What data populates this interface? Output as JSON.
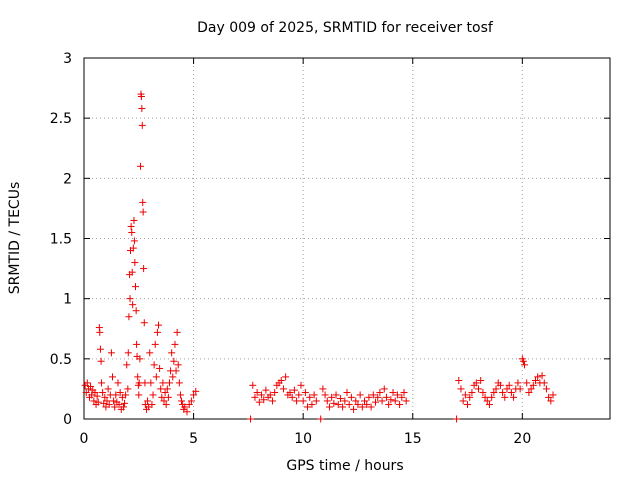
{
  "chart_data": {
    "type": "scatter",
    "title": "Day 009 of 2025, SRMTID for receiver tosf",
    "xlabel": "GPS time / hours",
    "ylabel": "SRMTID / TECUs",
    "xlim": [
      0,
      24
    ],
    "ylim": [
      0,
      3
    ],
    "xticks": [
      0,
      5,
      10,
      15,
      20
    ],
    "yticks": [
      0,
      0.5,
      1,
      1.5,
      2,
      2.5,
      3
    ],
    "xtick_labels": [
      "0",
      "5",
      "10",
      "15",
      "20"
    ],
    "ytick_labels": [
      "0",
      "0.5",
      "1",
      "1.5",
      "2",
      "2.5",
      "3"
    ],
    "grid": true,
    "marker": "+",
    "color": "#ee0000",
    "series": [
      {
        "name": "SRMTID",
        "points": [
          [
            0.05,
            0.28
          ],
          [
            0.1,
            0.22
          ],
          [
            0.15,
            0.3
          ],
          [
            0.2,
            0.25
          ],
          [
            0.25,
            0.18
          ],
          [
            0.3,
            0.27
          ],
          [
            0.35,
            0.2
          ],
          [
            0.4,
            0.24
          ],
          [
            0.45,
            0.15
          ],
          [
            0.5,
            0.22
          ],
          [
            0.55,
            0.12
          ],
          [
            0.6,
            0.19
          ],
          [
            0.65,
            0.14
          ],
          [
            0.7,
            0.76
          ],
          [
            0.72,
            0.72
          ],
          [
            0.75,
            0.58
          ],
          [
            0.78,
            0.48
          ],
          [
            0.8,
            0.3
          ],
          [
            0.85,
            0.22
          ],
          [
            0.9,
            0.13
          ],
          [
            0.95,
            0.18
          ],
          [
            1.0,
            0.1
          ],
          [
            1.05,
            0.15
          ],
          [
            1.1,
            0.25
          ],
          [
            1.15,
            0.12
          ],
          [
            1.2,
            0.2
          ],
          [
            1.25,
            0.55
          ],
          [
            1.3,
            0.35
          ],
          [
            1.35,
            0.15
          ],
          [
            1.4,
            0.1
          ],
          [
            1.45,
            0.2
          ],
          [
            1.5,
            0.14
          ],
          [
            1.55,
            0.3
          ],
          [
            1.6,
            0.12
          ],
          [
            1.65,
            0.22
          ],
          [
            1.7,
            0.08
          ],
          [
            1.75,
            0.18
          ],
          [
            1.8,
            0.1
          ],
          [
            1.85,
            0.13
          ],
          [
            1.9,
            0.2
          ],
          [
            1.95,
            0.45
          ],
          [
            2.0,
            0.25
          ],
          [
            2.02,
            0.55
          ],
          [
            2.05,
            0.85
          ],
          [
            2.08,
            1.2
          ],
          [
            2.1,
            1.0
          ],
          [
            2.12,
            1.4
          ],
          [
            2.15,
            1.6
          ],
          [
            2.18,
            1.55
          ],
          [
            2.2,
            1.22
          ],
          [
            2.22,
            0.95
          ],
          [
            2.25,
            1.42
          ],
          [
            2.28,
            1.65
          ],
          [
            2.3,
            1.48
          ],
          [
            2.32,
            1.3
          ],
          [
            2.35,
            1.1
          ],
          [
            2.38,
            0.9
          ],
          [
            2.4,
            0.62
          ],
          [
            2.42,
            0.52
          ],
          [
            2.45,
            0.35
          ],
          [
            2.48,
            0.28
          ],
          [
            2.5,
            0.2
          ],
          [
            2.52,
            0.3
          ],
          [
            2.55,
            0.5
          ],
          [
            2.58,
            2.1
          ],
          [
            2.6,
            2.7
          ],
          [
            2.62,
            2.68
          ],
          [
            2.64,
            2.58
          ],
          [
            2.66,
            2.44
          ],
          [
            2.68,
            1.8
          ],
          [
            2.7,
            1.72
          ],
          [
            2.72,
            1.25
          ],
          [
            2.75,
            0.8
          ],
          [
            2.78,
            0.3
          ],
          [
            2.8,
            0.12
          ],
          [
            2.85,
            0.08
          ],
          [
            2.9,
            0.15
          ],
          [
            2.95,
            0.1
          ],
          [
            3.0,
            0.55
          ],
          [
            3.05,
            0.3
          ],
          [
            3.1,
            0.12
          ],
          [
            3.15,
            0.2
          ],
          [
            3.2,
            0.45
          ],
          [
            3.25,
            0.62
          ],
          [
            3.3,
            0.35
          ],
          [
            3.35,
            0.72
          ],
          [
            3.4,
            0.78
          ],
          [
            3.45,
            0.42
          ],
          [
            3.5,
            0.25
          ],
          [
            3.55,
            0.18
          ],
          [
            3.6,
            0.3
          ],
          [
            3.65,
            0.15
          ],
          [
            3.7,
            0.22
          ],
          [
            3.75,
            0.12
          ],
          [
            3.8,
            0.25
          ],
          [
            3.85,
            0.18
          ],
          [
            3.9,
            0.3
          ],
          [
            3.95,
            0.4
          ],
          [
            4.0,
            0.55
          ],
          [
            4.05,
            0.35
          ],
          [
            4.1,
            0.48
          ],
          [
            4.15,
            0.62
          ],
          [
            4.2,
            0.4
          ],
          [
            4.25,
            0.72
          ],
          [
            4.3,
            0.45
          ],
          [
            4.35,
            0.3
          ],
          [
            4.4,
            0.2
          ],
          [
            4.45,
            0.15
          ],
          [
            4.5,
            0.12
          ],
          [
            4.55,
            0.08
          ],
          [
            4.6,
            0.1
          ],
          [
            4.7,
            0.06
          ],
          [
            4.8,
            0.12
          ],
          [
            4.9,
            0.15
          ],
          [
            5.0,
            0.2
          ],
          [
            5.1,
            0.23
          ],
          [
            7.6,
            0.0
          ],
          [
            7.7,
            0.28
          ],
          [
            7.8,
            0.18
          ],
          [
            7.9,
            0.22
          ],
          [
            8.0,
            0.14
          ],
          [
            8.1,
            0.2
          ],
          [
            8.2,
            0.16
          ],
          [
            8.3,
            0.24
          ],
          [
            8.4,
            0.18
          ],
          [
            8.5,
            0.2
          ],
          [
            8.6,
            0.15
          ],
          [
            8.7,
            0.22
          ],
          [
            8.8,
            0.28
          ],
          [
            8.9,
            0.3
          ],
          [
            9.0,
            0.32
          ],
          [
            9.1,
            0.25
          ],
          [
            9.2,
            0.35
          ],
          [
            9.3,
            0.2
          ],
          [
            9.4,
            0.22
          ],
          [
            9.5,
            0.18
          ],
          [
            9.6,
            0.24
          ],
          [
            9.7,
            0.15
          ],
          [
            9.8,
            0.2
          ],
          [
            9.9,
            0.28
          ],
          [
            10.0,
            0.15
          ],
          [
            10.1,
            0.22
          ],
          [
            10.2,
            0.1
          ],
          [
            10.3,
            0.18
          ],
          [
            10.4,
            0.12
          ],
          [
            10.5,
            0.2
          ],
          [
            10.6,
            0.15
          ],
          [
            10.8,
            0.0
          ],
          [
            10.9,
            0.25
          ],
          [
            11.0,
            0.2
          ],
          [
            11.1,
            0.15
          ],
          [
            11.2,
            0.1
          ],
          [
            11.3,
            0.18
          ],
          [
            11.4,
            0.13
          ],
          [
            11.5,
            0.2
          ],
          [
            11.6,
            0.12
          ],
          [
            11.7,
            0.17
          ],
          [
            11.8,
            0.1
          ],
          [
            11.9,
            0.15
          ],
          [
            12.0,
            0.22
          ],
          [
            12.1,
            0.12
          ],
          [
            12.2,
            0.18
          ],
          [
            12.3,
            0.08
          ],
          [
            12.4,
            0.15
          ],
          [
            12.5,
            0.12
          ],
          [
            12.6,
            0.2
          ],
          [
            12.7,
            0.1
          ],
          [
            12.8,
            0.15
          ],
          [
            12.9,
            0.12
          ],
          [
            13.0,
            0.18
          ],
          [
            13.1,
            0.1
          ],
          [
            13.2,
            0.2
          ],
          [
            13.3,
            0.14
          ],
          [
            13.4,
            0.18
          ],
          [
            13.5,
            0.22
          ],
          [
            13.6,
            0.15
          ],
          [
            13.7,
            0.25
          ],
          [
            13.8,
            0.18
          ],
          [
            13.9,
            0.12
          ],
          [
            14.0,
            0.16
          ],
          [
            14.1,
            0.22
          ],
          [
            14.2,
            0.15
          ],
          [
            14.3,
            0.2
          ],
          [
            14.4,
            0.12
          ],
          [
            14.5,
            0.18
          ],
          [
            14.6,
            0.22
          ],
          [
            14.7,
            0.15
          ],
          [
            17.0,
            0.0
          ],
          [
            17.1,
            0.32
          ],
          [
            17.2,
            0.25
          ],
          [
            17.3,
            0.15
          ],
          [
            17.4,
            0.2
          ],
          [
            17.5,
            0.12
          ],
          [
            17.6,
            0.18
          ],
          [
            17.7,
            0.22
          ],
          [
            17.8,
            0.28
          ],
          [
            17.9,
            0.3
          ],
          [
            18.0,
            0.25
          ],
          [
            18.1,
            0.32
          ],
          [
            18.2,
            0.22
          ],
          [
            18.3,
            0.18
          ],
          [
            18.4,
            0.15
          ],
          [
            18.5,
            0.12
          ],
          [
            18.6,
            0.18
          ],
          [
            18.7,
            0.22
          ],
          [
            18.8,
            0.25
          ],
          [
            18.9,
            0.3
          ],
          [
            19.0,
            0.28
          ],
          [
            19.1,
            0.22
          ],
          [
            19.2,
            0.18
          ],
          [
            19.3,
            0.25
          ],
          [
            19.4,
            0.28
          ],
          [
            19.5,
            0.22
          ],
          [
            19.6,
            0.18
          ],
          [
            19.7,
            0.25
          ],
          [
            19.8,
            0.3
          ],
          [
            19.9,
            0.25
          ],
          [
            20.0,
            0.5
          ],
          [
            20.05,
            0.48
          ],
          [
            20.1,
            0.45
          ],
          [
            20.2,
            0.3
          ],
          [
            20.3,
            0.22
          ],
          [
            20.4,
            0.25
          ],
          [
            20.5,
            0.28
          ],
          [
            20.6,
            0.32
          ],
          [
            20.7,
            0.35
          ],
          [
            20.8,
            0.3
          ],
          [
            20.9,
            0.36
          ],
          [
            21.0,
            0.3
          ],
          [
            21.1,
            0.25
          ],
          [
            21.2,
            0.18
          ],
          [
            21.3,
            0.15
          ],
          [
            21.4,
            0.2
          ]
        ]
      }
    ]
  }
}
